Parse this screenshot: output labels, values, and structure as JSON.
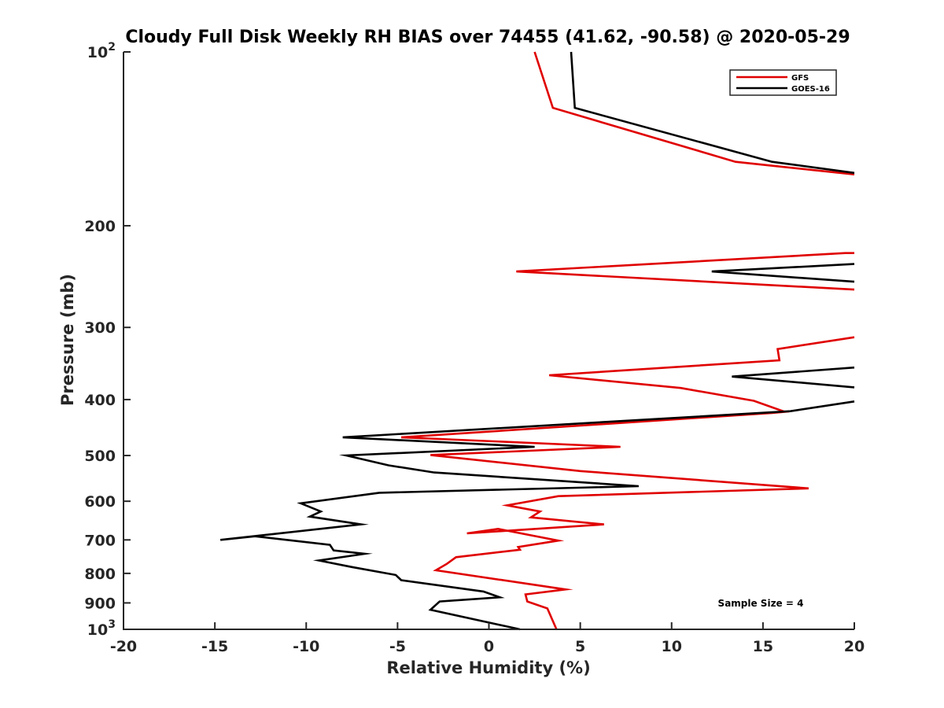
{
  "chart_data": {
    "type": "line",
    "title": "Cloudy Full Disk Weekly RH BIAS over 74455 (41.62, -90.58) @ 2020-05-29",
    "xlabel": "Relative Humidity (%)",
    "ylabel": "Pressure (mb)",
    "xlim": [
      -20,
      20
    ],
    "ylim": [
      100,
      1000
    ],
    "yscale": "log",
    "y_reversed": true,
    "x_ticks": [
      -20,
      -15,
      -10,
      -5,
      0,
      5,
      10,
      15,
      20
    ],
    "y_ticks": [
      {
        "value": 100,
        "label_base": "10",
        "label_exp": "2"
      },
      {
        "value": 200,
        "label_base": "200",
        "label_exp": ""
      },
      {
        "value": 300,
        "label_base": "300",
        "label_exp": ""
      },
      {
        "value": 400,
        "label_base": "400",
        "label_exp": ""
      },
      {
        "value": 500,
        "label_base": "500",
        "label_exp": ""
      },
      {
        "value": 600,
        "label_base": "600",
        "label_exp": ""
      },
      {
        "value": 700,
        "label_base": "700",
        "label_exp": ""
      },
      {
        "value": 800,
        "label_base": "800",
        "label_exp": ""
      },
      {
        "value": 900,
        "label_base": "900",
        "label_exp": ""
      },
      {
        "value": 1000,
        "label_base": "10",
        "label_exp": "3"
      }
    ],
    "grid": false,
    "legend_position": "top-right",
    "annotation": "Sample Size = 4",
    "series": [
      {
        "name": "GFS",
        "color": "#e00000",
        "segments": [
          [
            [
              2.5,
              100
            ],
            [
              3.5,
              125
            ],
            [
              13.5,
              155
            ],
            [
              20,
              163
            ]
          ],
          [
            [
              20,
              223
            ],
            [
              19.5,
              223
            ],
            [
              1.5,
              240
            ],
            [
              20,
              258
            ]
          ],
          [
            [
              20,
              312
            ],
            [
              15.8,
              327
            ],
            [
              15.9,
              342
            ],
            [
              3.3,
              363
            ],
            [
              10.5,
              382
            ],
            [
              14.5,
              402
            ],
            [
              16.2,
              420
            ],
            [
              15.5,
              422
            ],
            [
              -4.8,
              465
            ],
            [
              7.2,
              483
            ],
            [
              -3.2,
              499
            ],
            [
              5,
              532
            ],
            [
              17.5,
              570
            ],
            [
              3.8,
              588
            ],
            [
              1,
              610
            ],
            [
              2.8,
              625
            ],
            [
              2.3,
              640
            ],
            [
              6.3,
              658
            ],
            [
              -1.2,
              682
            ],
            [
              0.5,
              670
            ],
            [
              3.8,
              702
            ],
            [
              1.6,
              720
            ],
            [
              1.7,
              728
            ],
            [
              -1.8,
              750
            ],
            [
              -2.3,
              770
            ],
            [
              -2.9,
              790
            ],
            [
              4.2,
              853
            ],
            [
              2,
              870
            ],
            [
              2.1,
              895
            ],
            [
              3.2,
              920
            ],
            [
              3.7,
              1000
            ]
          ]
        ]
      },
      {
        "name": "GOES-16",
        "color": "#000000",
        "segments": [
          [
            [
              4.5,
              100
            ],
            [
              4.7,
              125
            ],
            [
              15.5,
              155
            ],
            [
              20,
              162
            ]
          ],
          [
            [
              20,
              233
            ],
            [
              12.2,
              240
            ],
            [
              20,
              250
            ]
          ],
          [
            [
              20,
              352
            ],
            [
              13.3,
              365
            ],
            [
              20,
              381
            ]
          ],
          [
            [
              20,
              403
            ],
            [
              16.5,
              419
            ],
            [
              -8,
              465
            ],
            [
              2.5,
              483
            ],
            [
              -7.8,
              500
            ],
            [
              -5.5,
              520
            ],
            [
              -3,
              535
            ],
            [
              8.2,
              565
            ],
            [
              -6,
              580
            ],
            [
              -10.3,
              605
            ],
            [
              -9.2,
              625
            ],
            [
              -9.8,
              638
            ],
            [
              -7,
              658
            ],
            [
              -14.7,
              700
            ],
            [
              -12.8,
              690
            ],
            [
              -8.7,
              714
            ],
            [
              -8.5,
              730
            ],
            [
              -6.8,
              740
            ],
            [
              -9.3,
              760
            ],
            [
              -7.5,
              780
            ],
            [
              -5.1,
              805
            ],
            [
              -4.8,
              822
            ],
            [
              -0.3,
              860
            ],
            [
              0.6,
              880
            ],
            [
              -2.7,
              895
            ],
            [
              -3.2,
              925
            ],
            [
              1.7,
              1000
            ]
          ]
        ]
      }
    ]
  }
}
